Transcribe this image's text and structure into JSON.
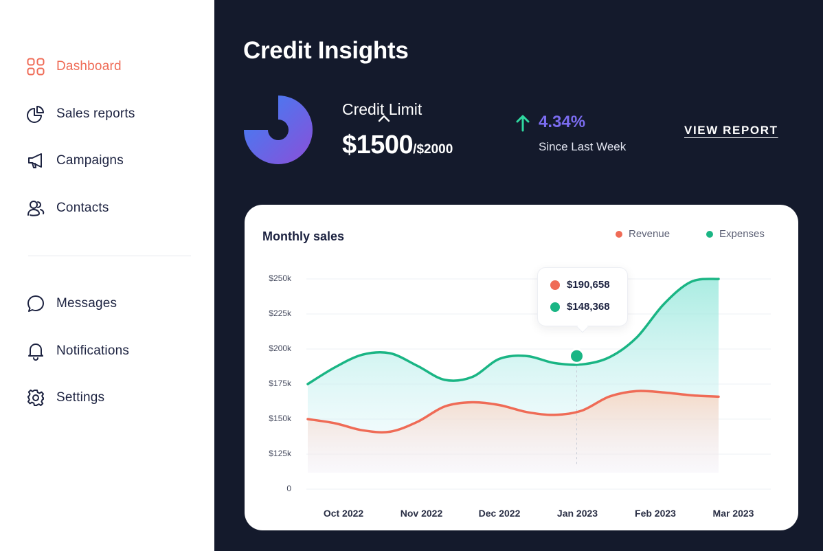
{
  "sidebar": {
    "items": [
      {
        "label": "Dashboard",
        "icon": "dashboard-grid-icon",
        "active": true
      },
      {
        "label": "Sales reports",
        "icon": "pie-chart-icon"
      },
      {
        "label": "Campaigns",
        "icon": "megaphone-icon"
      },
      {
        "label": "Contacts",
        "icon": "users-icon"
      },
      {
        "label": "Messages",
        "icon": "message-bubble-icon"
      },
      {
        "label": "Notifications",
        "icon": "bell-icon"
      },
      {
        "label": "Settings",
        "icon": "gear-icon"
      }
    ]
  },
  "header": {
    "title": "Credit Insights"
  },
  "credit": {
    "label": "Credit Limit",
    "used": "$1500",
    "limit": "/$2000",
    "used_fraction": 0.75
  },
  "change": {
    "value": "4.34%",
    "label": "Since Last Week"
  },
  "view_report_label": "VIEW REPORT",
  "colors": {
    "accent": "#ef6b56",
    "revenue": "#ef6b56",
    "expenses": "#1ab584",
    "change": "#7b6cf0",
    "up_arrow": "#2fd8a0",
    "background": "#141a2c"
  },
  "chart_data": {
    "type": "area",
    "title": "Monthly sales",
    "categories": [
      "Oct 2022",
      "Nov 2022",
      "Dec 2022",
      "Jan 2023",
      "Feb 2023",
      "Mar 2023"
    ],
    "y_ticks": [
      "$250k",
      "$225k",
      "$200k",
      "$175k",
      "$150k",
      "$125k",
      "0"
    ],
    "series": [
      {
        "name": "Revenue",
        "color": "#ef6b56",
        "x": [
          0,
          1,
          2,
          3,
          4,
          5,
          6,
          7,
          8,
          9,
          10,
          11,
          12,
          13,
          14,
          15
        ],
        "values": [
          150000,
          147000,
          142000,
          141000,
          148000,
          159000,
          162000,
          160000,
          155000,
          153000,
          156000,
          166000,
          170000,
          169000,
          167000,
          166000
        ]
      },
      {
        "name": "Expenses",
        "color": "#1ab584",
        "x": [
          0,
          1,
          2,
          3,
          4,
          5,
          6,
          7,
          8,
          9,
          10,
          11,
          12,
          13,
          14,
          15
        ],
        "values": [
          175000,
          187000,
          196000,
          197000,
          188000,
          178000,
          180000,
          193000,
          195000,
          190000,
          189000,
          194000,
          208000,
          232000,
          248000,
          250000
        ]
      }
    ],
    "tooltip": {
      "category": "Jan 2023",
      "revenue": "$190,658",
      "expenses": "$148,368"
    },
    "legend_position": "top-right",
    "grid": true
  }
}
